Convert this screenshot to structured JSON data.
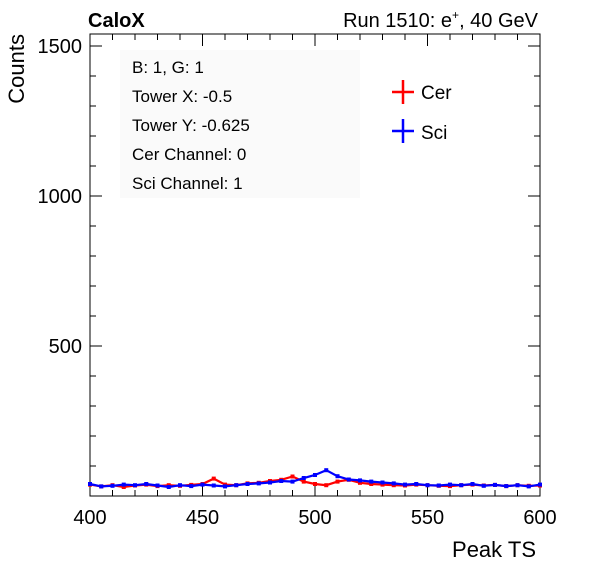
{
  "header": {
    "left_label": "CaloX",
    "run_label": "Run 1510: e",
    "run_sup": "+",
    "run_suffix": ", 40 GeV"
  },
  "info_box": {
    "lines": [
      "B: 1, G: 1",
      "Tower X: -0.5",
      "Tower Y: -0.625",
      "Cer Channel: 0",
      "Sci Channel: 1"
    ]
  },
  "chart_data": {
    "type": "line",
    "title": "",
    "xlabel": "Peak TS",
    "ylabel": "Counts",
    "xlim": [
      400,
      600
    ],
    "ylim": [
      0,
      1540
    ],
    "x_ticks": [
      400,
      450,
      500,
      550,
      600
    ],
    "y_ticks": [
      500,
      1000,
      1500
    ],
    "legend_position": "top-right",
    "series": [
      {
        "name": "Cer",
        "color": "#ff0000",
        "x": [
          400,
          405,
          410,
          415,
          420,
          425,
          430,
          435,
          440,
          445,
          450,
          455,
          460,
          465,
          470,
          475,
          480,
          485,
          490,
          495,
          500,
          505,
          510,
          515,
          520,
          525,
          530,
          535,
          540,
          545,
          550,
          555,
          560,
          565,
          570,
          575,
          580,
          585,
          590,
          595,
          600
        ],
        "values": [
          38,
          32,
          36,
          30,
          35,
          38,
          33,
          36,
          34,
          37,
          40,
          58,
          38,
          36,
          42,
          44,
          50,
          54,
          65,
          48,
          40,
          36,
          48,
          54,
          44,
          40,
          38,
          36,
          35,
          38,
          36,
          34,
          33,
          36,
          38,
          35,
          37,
          33,
          36,
          34,
          35
        ]
      },
      {
        "name": "Sci",
        "color": "#0000ff",
        "x": [
          400,
          405,
          410,
          415,
          420,
          425,
          430,
          435,
          440,
          445,
          450,
          455,
          460,
          465,
          470,
          475,
          480,
          485,
          490,
          495,
          500,
          505,
          510,
          515,
          520,
          525,
          530,
          535,
          540,
          545,
          550,
          555,
          560,
          565,
          570,
          575,
          580,
          585,
          590,
          595,
          600
        ],
        "values": [
          40,
          32,
          34,
          38,
          36,
          40,
          35,
          30,
          36,
          33,
          38,
          35,
          32,
          36,
          40,
          42,
          45,
          50,
          48,
          60,
          70,
          86,
          66,
          55,
          52,
          48,
          45,
          42,
          38,
          40,
          36,
          35,
          38,
          36,
          40,
          34,
          37,
          33,
          36,
          32,
          38
        ]
      }
    ]
  }
}
